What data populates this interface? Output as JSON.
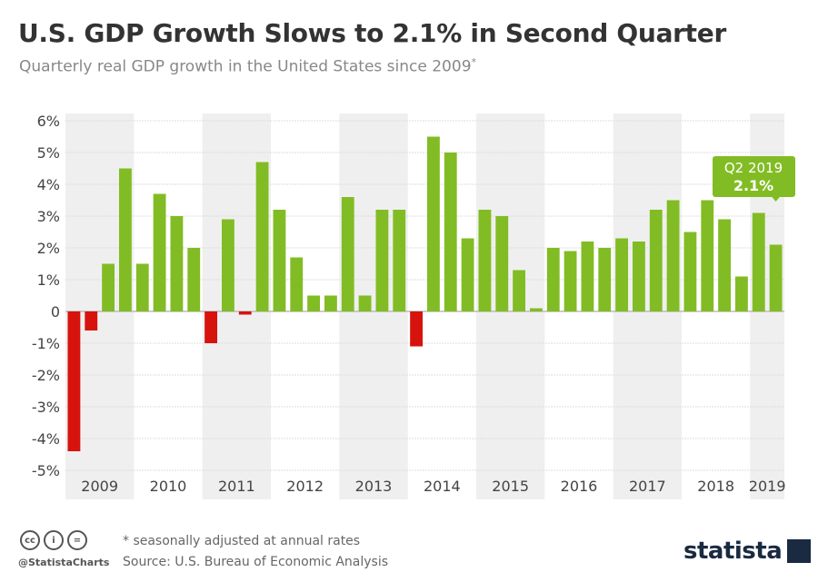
{
  "header": {
    "title": "U.S. GDP Growth Slows to 2.1% in Second Quarter",
    "subtitle": "Quarterly real GDP growth in the United States since 2009",
    "subtitle_mark": "*"
  },
  "chart_data": {
    "type": "bar",
    "ylim": [
      -5,
      6
    ],
    "yticks": [
      6,
      5,
      4,
      3,
      2,
      1,
      0,
      -1,
      -2,
      -3,
      -4,
      -5
    ],
    "ytick_labels": [
      "6%",
      "5%",
      "4%",
      "3%",
      "2%",
      "1%",
      "0",
      "-1%",
      "-2%",
      "-3%",
      "-4%",
      "-5%"
    ],
    "grid": true,
    "years": [
      "2009",
      "2010",
      "2011",
      "2012",
      "2013",
      "2014",
      "2015",
      "2016",
      "2017",
      "2018",
      "2019"
    ],
    "categories": [
      "Q1 2009",
      "Q2 2009",
      "Q3 2009",
      "Q4 2009",
      "Q1 2010",
      "Q2 2010",
      "Q3 2010",
      "Q4 2010",
      "Q1 2011",
      "Q2 2011",
      "Q3 2011",
      "Q4 2011",
      "Q1 2012",
      "Q2 2012",
      "Q3 2012",
      "Q4 2012",
      "Q1 2013",
      "Q2 2013",
      "Q3 2013",
      "Q4 2013",
      "Q1 2014",
      "Q2 2014",
      "Q3 2014",
      "Q4 2014",
      "Q1 2015",
      "Q2 2015",
      "Q3 2015",
      "Q4 2015",
      "Q1 2016",
      "Q2 2016",
      "Q3 2016",
      "Q4 2016",
      "Q1 2017",
      "Q2 2017",
      "Q3 2017",
      "Q4 2017",
      "Q1 2018",
      "Q2 2018",
      "Q3 2018",
      "Q4 2018",
      "Q1 2019",
      "Q2 2019"
    ],
    "values": [
      -4.4,
      -0.6,
      1.5,
      4.5,
      1.5,
      3.7,
      3.0,
      2.0,
      -1.0,
      2.9,
      -0.1,
      4.7,
      3.2,
      1.7,
      0.5,
      0.5,
      3.6,
      0.5,
      3.2,
      3.2,
      -1.1,
      5.5,
      5.0,
      2.3,
      3.2,
      3.0,
      1.3,
      0.1,
      2.0,
      1.9,
      2.2,
      2.0,
      2.3,
      2.2,
      3.2,
      3.5,
      2.5,
      3.5,
      2.9,
      1.1,
      3.1,
      2.1
    ],
    "colors": {
      "positive": "#82bc24",
      "negative": "#d7130d",
      "band": "#efefef"
    },
    "annotation": {
      "label": "Q2 2019",
      "value": "2.1%"
    }
  },
  "footer": {
    "footnote": "* seasonally adjusted at annual rates",
    "source": "Source: U.S. Bureau of Economic Analysis",
    "handle": "@StatistaCharts",
    "brand": "statista",
    "license_icons": [
      "cc",
      "by",
      "nd"
    ]
  }
}
